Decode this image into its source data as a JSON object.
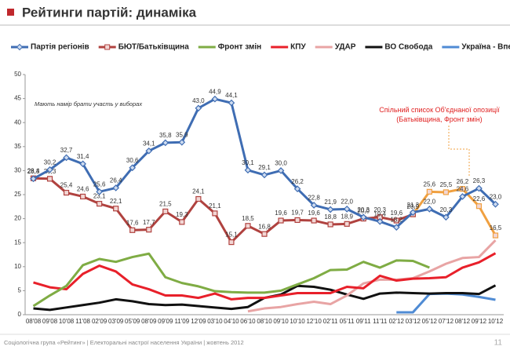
{
  "chart_data": {
    "type": "line",
    "title": "Рейтинги партій: динаміка",
    "note": "Мають намір брати участь у виборах",
    "footer": "Соціологічна група «Рейтинг» | Електоральні настрої населення України | жовтень 2012",
    "page": "11",
    "categories": [
      "08'08",
      "09'08",
      "10'08",
      "11'08",
      "02'09",
      "03'09",
      "05'09",
      "08'09",
      "09'09",
      "11'09",
      "12'09",
      "03'10",
      "04'10",
      "06'10",
      "08'10",
      "09'10",
      "10'10",
      "12'10",
      "02'11",
      "05'11",
      "09'11",
      "11'11",
      "02'12",
      "03'12",
      "05'12",
      "07'12",
      "08'12",
      "09'12",
      "10'12"
    ],
    "ylim": [
      0,
      50
    ],
    "yticks": [
      0,
      5,
      10,
      15,
      20,
      25,
      30,
      35,
      40,
      45,
      50
    ],
    "grid": false,
    "series": [
      {
        "name": "Партія регіонів",
        "color": "#3f6db3",
        "marker": "diamond",
        "values": [
          28.3,
          30.2,
          32.7,
          31.4,
          25.6,
          26.4,
          30.6,
          34.1,
          35.8,
          35.9,
          43.0,
          44.9,
          44.1,
          30.1,
          29.1,
          30.0,
          26.2,
          22.8,
          21.9,
          22.0,
          20.3,
          19.4,
          18.2,
          21.3,
          22.0,
          20.3,
          24.6,
          26.3,
          23.0
        ],
        "value_labels": [
          "28,3",
          "30,2",
          "32,7",
          "31,4",
          "25,6",
          "26,4",
          "30,6",
          "34,1",
          "35,8",
          "35,9",
          "43,0",
          "44,9",
          "44,1",
          "30,1",
          "29,1",
          "30,0",
          "26,2",
          "22,8",
          "21,9",
          "22,0",
          "20,3",
          "19,4",
          "18,2",
          "21,3",
          "22,0",
          "20,3",
          "24,6",
          "26,3",
          "23,0"
        ]
      },
      {
        "name": "БЮТ/Батьківщина",
        "color": "#b0423f",
        "marker": "square",
        "values": [
          28.4,
          28.3,
          25.4,
          24.6,
          23.1,
          22.1,
          17.6,
          17.7,
          21.5,
          19.3,
          24.1,
          21.1,
          15.1,
          18.5,
          16.8,
          19.6,
          19.7,
          19.6,
          18.8,
          18.9,
          20.0,
          20.3,
          19.6,
          20.9,
          null,
          null,
          null,
          null,
          null
        ],
        "value_labels": [
          "28,4",
          "28,3",
          "25,4",
          "24,6",
          "23,1",
          "22,1",
          "17,6",
          "17,7",
          "21,5",
          "19,3",
          "24,1",
          "21,1",
          "15,1",
          "18,5",
          "16,8",
          "19,6",
          "19,7",
          "19,6",
          "18,8",
          "18,9",
          "20,0",
          "20,3",
          "19,6",
          "20,9",
          null,
          null,
          null,
          null,
          null
        ]
      },
      {
        "name": "Фронт змін",
        "color": "#7fac44",
        "values": [
          1.8,
          4,
          6,
          10.3,
          11.6,
          11,
          12,
          12.7,
          7.8,
          6.6,
          5.9,
          4.9,
          4.7,
          4.6,
          4.6,
          5,
          6.3,
          7.6,
          9.3,
          9.4,
          11,
          9.8,
          11.3,
          11.2,
          9.8,
          null,
          null,
          null,
          null
        ]
      },
      {
        "name": "КПУ",
        "color": "#e8202a",
        "values": [
          6.7,
          5.7,
          5.3,
          8.5,
          10.2,
          9,
          6.3,
          5.3,
          4,
          4,
          3.5,
          4.4,
          3.2,
          3.5,
          3.5,
          4,
          4.5,
          4.5,
          4.5,
          5.8,
          5.5,
          8.1,
          7.1,
          7.5,
          7.6,
          7.8,
          9.8,
          10.9,
          12.8
        ]
      },
      {
        "name": "УДАР",
        "color": "#e8a4a4",
        "values": [
          null,
          null,
          null,
          null,
          null,
          null,
          null,
          null,
          null,
          null,
          null,
          null,
          null,
          0.7,
          1.3,
          1.6,
          2.2,
          2.7,
          2.2,
          4,
          6.5,
          7.3,
          7.3,
          7.6,
          9,
          10.6,
          11.8,
          12,
          15.5
        ]
      },
      {
        "name": "ВО Свобода",
        "color": "#111111",
        "values": [
          1.3,
          1,
          1.5,
          2,
          2.5,
          3.2,
          2.8,
          2.2,
          2,
          2.1,
          1.8,
          1.5,
          1.2,
          1.6,
          3.5,
          4.2,
          6,
          5.8,
          5.2,
          4.2,
          3.3,
          4.4,
          4.6,
          4.5,
          4.4,
          4.5,
          4.5,
          4.3,
          6.1
        ]
      },
      {
        "name": "Україна - Вперед!",
        "color": "#4f8bd4",
        "values": [
          null,
          null,
          null,
          null,
          null,
          null,
          null,
          null,
          null,
          null,
          null,
          null,
          null,
          null,
          null,
          null,
          null,
          null,
          null,
          null,
          null,
          null,
          0.5,
          0.5,
          4.3,
          4.4,
          4.2,
          3.7,
          3.1
        ]
      }
    ],
    "opposition": {
      "annotation": "Спільний список  Об'єднаної опозиції (Батьківщина, Фронт змін)",
      "color": "#f0a040",
      "marker": "square",
      "values": [
        null,
        null,
        null,
        null,
        null,
        null,
        null,
        null,
        null,
        null,
        null,
        null,
        null,
        null,
        null,
        null,
        null,
        null,
        null,
        null,
        null,
        null,
        null,
        20.9,
        25.6,
        25.5,
        26.2,
        22.6,
        16.5
      ],
      "value_labels": [
        null,
        null,
        null,
        null,
        null,
        null,
        null,
        null,
        null,
        null,
        null,
        null,
        null,
        null,
        null,
        null,
        null,
        null,
        null,
        null,
        null,
        null,
        null,
        null,
        "25,6",
        "25,5",
        "26,2",
        "22,6",
        "16,5"
      ]
    }
  }
}
